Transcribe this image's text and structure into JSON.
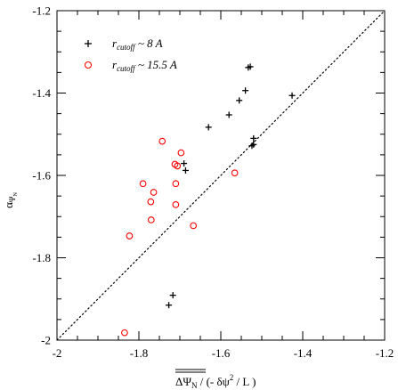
{
  "chart_data": {
    "type": "scatter",
    "xlim": [
      -2.0,
      -1.2
    ],
    "ylim": [
      -2.0,
      -1.2
    ],
    "x_ticks": [
      -2.0,
      -1.8,
      -1.6,
      -1.4,
      -1.2
    ],
    "x_tick_labels": [
      "-2",
      "-1.8",
      "-1.6",
      "-1.4",
      "-1.2"
    ],
    "y_ticks": [
      -2.0,
      -1.8,
      -1.6,
      -1.4,
      -1.2
    ],
    "y_tick_labels": [
      "-2",
      "-1.8",
      "-1.6",
      "-1.4",
      "-1.2"
    ],
    "x_minor_step": 0.05,
    "y_minor_step": 0.05,
    "xlabel_main": "ΔΨ",
    "xlabel_sub": "N",
    "xlabel_rest": " / (- δψ",
    "xlabel_sup": "2",
    "xlabel_end": " / L )",
    "ylabel_main": "α",
    "ylabel_sub1": "Ψ",
    "ylabel_sub2": "N",
    "diagonal_line": {
      "from": [
        -2.0,
        -2.0
      ],
      "to": [
        -1.2,
        -1.2
      ],
      "style": "dotted"
    },
    "legend_position": "top-left",
    "series": [
      {
        "name": "r_cutoff ~ 8 A",
        "legend_r": "r",
        "legend_sub": "cutoff",
        "legend_rest": " ~ 8 A",
        "marker": "plus",
        "color": "#000000",
        "points": [
          [
            -1.533,
            -1.338
          ],
          [
            -1.528,
            -1.336
          ],
          [
            -1.555,
            -1.418
          ],
          [
            -1.54,
            -1.394
          ],
          [
            -1.426,
            -1.406
          ],
          [
            -1.58,
            -1.453
          ],
          [
            -1.63,
            -1.483
          ],
          [
            -1.52,
            -1.51
          ],
          [
            -1.52,
            -1.525
          ],
          [
            -1.524,
            -1.528
          ],
          [
            -1.69,
            -1.571
          ],
          [
            -1.686,
            -1.588
          ],
          [
            -1.717,
            -1.891
          ],
          [
            -1.727,
            -1.915
          ]
        ]
      },
      {
        "name": "r_cutoff ~ 15.5 A",
        "legend_r": "r",
        "legend_sub": "cutoff",
        "legend_rest": " ~ 15.5 A",
        "marker": "open-circle",
        "color": "#ff0000",
        "points": [
          [
            -1.743,
            -1.517
          ],
          [
            -1.697,
            -1.545
          ],
          [
            -1.712,
            -1.573
          ],
          [
            -1.706,
            -1.577
          ],
          [
            -1.566,
            -1.594
          ],
          [
            -1.79,
            -1.62
          ],
          [
            -1.71,
            -1.62
          ],
          [
            -1.764,
            -1.641
          ],
          [
            -1.771,
            -1.664
          ],
          [
            -1.71,
            -1.671
          ],
          [
            -1.77,
            -1.708
          ],
          [
            -1.667,
            -1.722
          ],
          [
            -1.823,
            -1.747
          ],
          [
            -1.835,
            -1.982
          ]
        ]
      }
    ]
  }
}
